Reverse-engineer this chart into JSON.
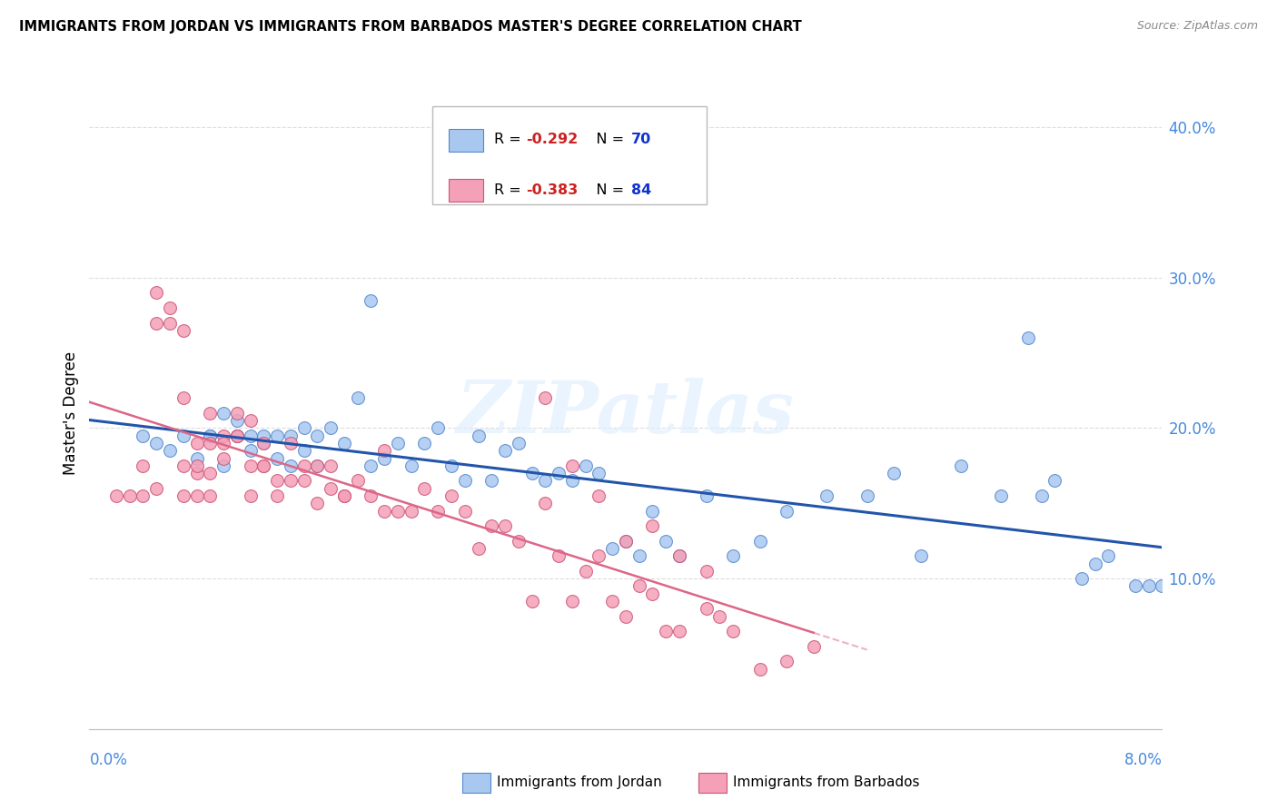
{
  "title": "IMMIGRANTS FROM JORDAN VS IMMIGRANTS FROM BARBADOS MASTER'S DEGREE CORRELATION CHART",
  "source": "Source: ZipAtlas.com",
  "ylabel": "Master's Degree",
  "right_yticks": [
    0.1,
    0.2,
    0.3,
    0.4
  ],
  "right_yticklabels": [
    "10.0%",
    "20.0%",
    "30.0%",
    "40.0%"
  ],
  "xlim": [
    0.0,
    0.08
  ],
  "ylim": [
    0.0,
    0.42
  ],
  "jordan_fill_color": "#A8C8F0",
  "jordan_edge_color": "#5588CC",
  "barbados_fill_color": "#F4A0B8",
  "barbados_edge_color": "#CC5577",
  "jordan_line_color": "#2255AA",
  "barbados_line_color": "#DD6688",
  "legend_jordan_R": "-0.292",
  "legend_jordan_N": "70",
  "legend_barbados_R": "-0.383",
  "legend_barbados_N": "84",
  "jordan_scatter_x": [
    0.004,
    0.005,
    0.006,
    0.007,
    0.008,
    0.009,
    0.009,
    0.01,
    0.01,
    0.011,
    0.011,
    0.012,
    0.012,
    0.013,
    0.013,
    0.014,
    0.014,
    0.015,
    0.015,
    0.016,
    0.016,
    0.017,
    0.017,
    0.018,
    0.019,
    0.02,
    0.021,
    0.021,
    0.022,
    0.023,
    0.024,
    0.025,
    0.026,
    0.027,
    0.028,
    0.029,
    0.03,
    0.031,
    0.032,
    0.033,
    0.034,
    0.035,
    0.036,
    0.037,
    0.038,
    0.039,
    0.04,
    0.041,
    0.042,
    0.043,
    0.044,
    0.046,
    0.048,
    0.05,
    0.052,
    0.055,
    0.058,
    0.06,
    0.062,
    0.065,
    0.068,
    0.07,
    0.072,
    0.074,
    0.076,
    0.078,
    0.079,
    0.08,
    0.075,
    0.071
  ],
  "jordan_scatter_y": [
    0.195,
    0.19,
    0.185,
    0.195,
    0.18,
    0.195,
    0.195,
    0.21,
    0.175,
    0.195,
    0.205,
    0.195,
    0.185,
    0.19,
    0.195,
    0.195,
    0.18,
    0.195,
    0.175,
    0.2,
    0.185,
    0.195,
    0.175,
    0.2,
    0.19,
    0.22,
    0.175,
    0.285,
    0.18,
    0.19,
    0.175,
    0.19,
    0.2,
    0.175,
    0.165,
    0.195,
    0.165,
    0.185,
    0.19,
    0.17,
    0.165,
    0.17,
    0.165,
    0.175,
    0.17,
    0.12,
    0.125,
    0.115,
    0.145,
    0.125,
    0.115,
    0.155,
    0.115,
    0.125,
    0.145,
    0.155,
    0.155,
    0.17,
    0.115,
    0.175,
    0.155,
    0.26,
    0.165,
    0.1,
    0.115,
    0.095,
    0.095,
    0.095,
    0.11,
    0.155
  ],
  "barbados_scatter_x": [
    0.002,
    0.003,
    0.004,
    0.004,
    0.005,
    0.005,
    0.005,
    0.006,
    0.006,
    0.007,
    0.007,
    0.007,
    0.007,
    0.008,
    0.008,
    0.008,
    0.008,
    0.009,
    0.009,
    0.009,
    0.009,
    0.01,
    0.01,
    0.01,
    0.011,
    0.011,
    0.011,
    0.012,
    0.012,
    0.012,
    0.013,
    0.013,
    0.013,
    0.014,
    0.014,
    0.015,
    0.015,
    0.016,
    0.016,
    0.017,
    0.017,
    0.018,
    0.018,
    0.019,
    0.019,
    0.02,
    0.021,
    0.022,
    0.022,
    0.023,
    0.024,
    0.025,
    0.026,
    0.027,
    0.028,
    0.029,
    0.03,
    0.031,
    0.032,
    0.033,
    0.034,
    0.035,
    0.036,
    0.037,
    0.038,
    0.039,
    0.04,
    0.041,
    0.042,
    0.043,
    0.044,
    0.046,
    0.047,
    0.048,
    0.05,
    0.052,
    0.054,
    0.034,
    0.036,
    0.038,
    0.04,
    0.042,
    0.044,
    0.046
  ],
  "barbados_scatter_y": [
    0.155,
    0.155,
    0.175,
    0.155,
    0.29,
    0.27,
    0.16,
    0.27,
    0.28,
    0.22,
    0.175,
    0.265,
    0.155,
    0.17,
    0.19,
    0.175,
    0.155,
    0.21,
    0.19,
    0.17,
    0.155,
    0.195,
    0.18,
    0.19,
    0.21,
    0.195,
    0.195,
    0.175,
    0.205,
    0.155,
    0.175,
    0.19,
    0.175,
    0.155,
    0.165,
    0.19,
    0.165,
    0.175,
    0.165,
    0.15,
    0.175,
    0.16,
    0.175,
    0.155,
    0.155,
    0.165,
    0.155,
    0.145,
    0.185,
    0.145,
    0.145,
    0.16,
    0.145,
    0.155,
    0.145,
    0.12,
    0.135,
    0.135,
    0.125,
    0.085,
    0.15,
    0.115,
    0.085,
    0.105,
    0.115,
    0.085,
    0.075,
    0.095,
    0.09,
    0.065,
    0.065,
    0.08,
    0.075,
    0.065,
    0.04,
    0.045,
    0.055,
    0.22,
    0.175,
    0.155,
    0.125,
    0.135,
    0.115,
    0.105
  ],
  "watermark_text": "ZIPatlas",
  "background_color": "#FFFFFF",
  "grid_color": "#DDDDDD",
  "r_color": "#CC2222",
  "n_color": "#1133CC"
}
